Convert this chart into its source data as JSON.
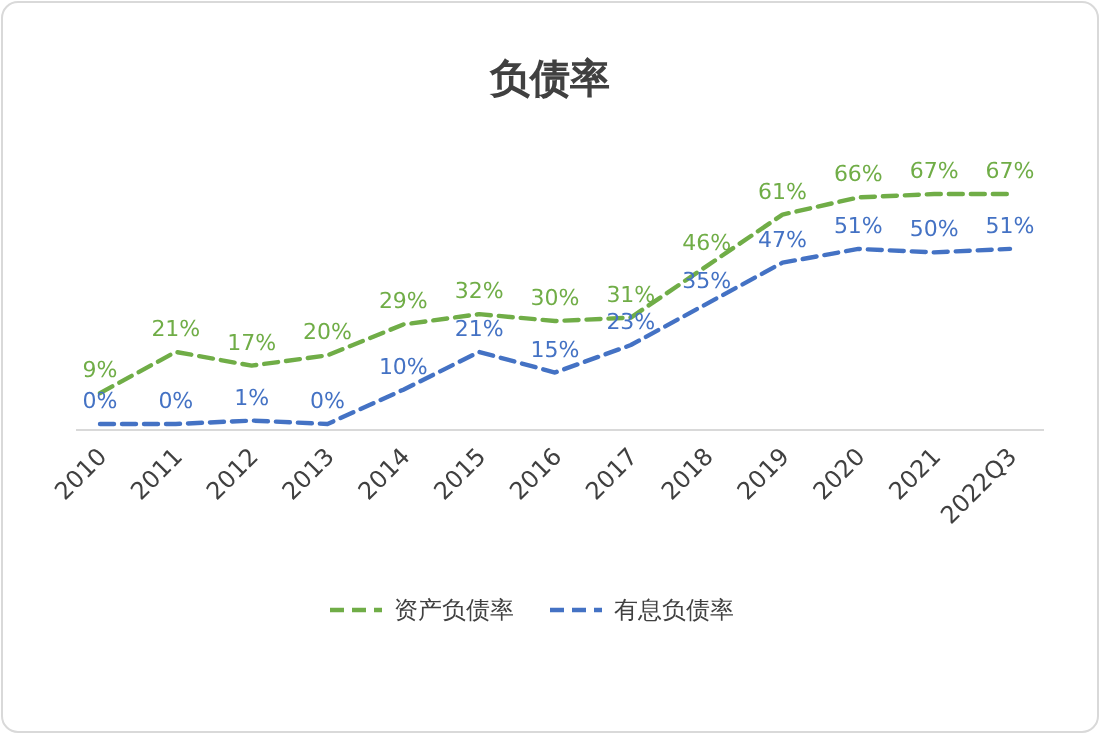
{
  "chart_data": {
    "type": "line",
    "title": "负债率",
    "categories": [
      "2010",
      "2011",
      "2012",
      "2013",
      "2014",
      "2015",
      "2016",
      "2017",
      "2018",
      "2019",
      "2020",
      "2021",
      "2022Q3"
    ],
    "series": [
      {
        "name": "资产负债率",
        "color": "#70ad47",
        "values": [
          9,
          21,
          17,
          20,
          29,
          32,
          30,
          31,
          46,
          61,
          66,
          67,
          67
        ],
        "value_labels": [
          "9%",
          "21%",
          "17%",
          "20%",
          "29%",
          "32%",
          "30%",
          "31%",
          "46%",
          "61%",
          "66%",
          "67%",
          "67%"
        ]
      },
      {
        "name": "有息负债率",
        "color": "#4472c4",
        "values": [
          0,
          0,
          1,
          0,
          10,
          21,
          15,
          23,
          35,
          47,
          51,
          50,
          51
        ],
        "value_labels": [
          "0%",
          "0%",
          "1%",
          "0%",
          "10%",
          "21%",
          "15%",
          "23%",
          "35%",
          "47%",
          "51%",
          "50%",
          "51%"
        ]
      }
    ],
    "line_style": "dashed",
    "marker": "none",
    "legend": "bottom"
  }
}
